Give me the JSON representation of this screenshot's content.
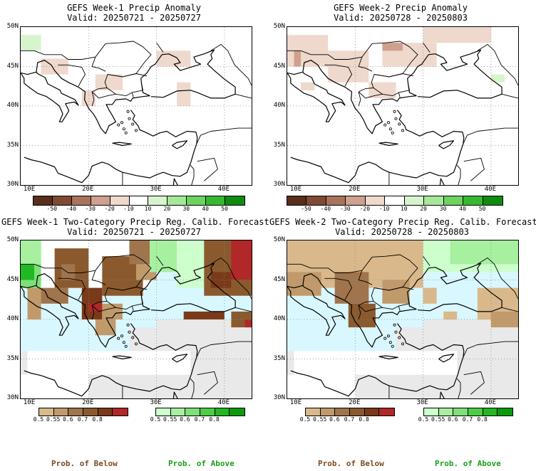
{
  "panels": [
    {
      "title": "GEFS Week-1 Precip Anomaly",
      "valid": "Valid: 20250721 - 20250727"
    },
    {
      "title": "GEFS Week-2 Precip Anomaly",
      "valid": "Valid: 20250728 - 20250803"
    },
    {
      "title": "GEFS Week-1 Two-Category Precip Reg. Calib. Forecast",
      "valid": "Valid: 20250721 - 20250727"
    },
    {
      "title": "GEFS Week-2 Two-Category Precip Reg. Calib. Forecast",
      "valid": "Valid: 20250728 - 20250803"
    }
  ],
  "axes": {
    "lat_labels": [
      "50N",
      "45N",
      "40N",
      "35N",
      "30N"
    ],
    "lon_labels": [
      "10E",
      "20E",
      "30E",
      "40E"
    ],
    "lat_range": [
      30,
      50
    ],
    "lon_range": [
      10,
      44
    ],
    "grid": "dotted"
  },
  "anomaly_colorbar": {
    "labels": [
      "-50",
      "-40",
      "-30",
      "-20",
      "-10",
      "10",
      "20",
      "30",
      "40",
      "50"
    ],
    "colors": [
      "#5a2d1c",
      "#7f4a33",
      "#a9725b",
      "#cea08d",
      "#efd8cc",
      "#ffffff",
      "#d6f5cc",
      "#a6e89a",
      "#6cd35f",
      "#35b82e",
      "#108a10"
    ]
  },
  "prob_colorbar_below": {
    "labels": [
      "0.5",
      "0.55",
      "0.6",
      "0.7",
      "0.8"
    ],
    "colors": [
      "#d9b98b",
      "#c19a6b",
      "#a0744c",
      "#8a5a2e",
      "#7a3a1a",
      "#b02828"
    ]
  },
  "prob_colorbar_above": {
    "labels": [
      "0.5",
      "0.55",
      "0.6",
      "0.7",
      "0.8"
    ],
    "colors": [
      "#ccffcc",
      "#a6f0a0",
      "#7ee078",
      "#4ccd44",
      "#22b822",
      "#0a9a0a"
    ]
  },
  "footer": {
    "below_label": "Prob. of Below",
    "above_label": "Prob. of Above",
    "below_color": "#7a4a22",
    "above_color": "#18a018"
  },
  "fill_colors": {
    "sea": "#d9f7ff",
    "no_signal": "#e9e9e9",
    "land_dry": "#d2b48c"
  }
}
